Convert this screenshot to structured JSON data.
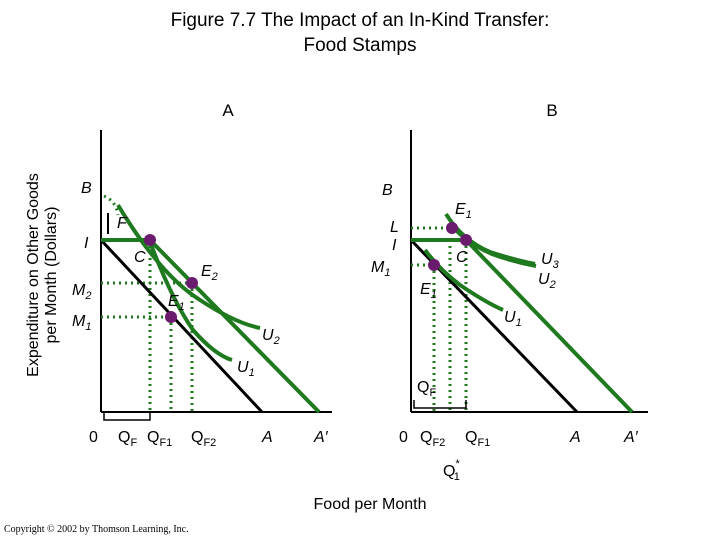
{
  "title": {
    "line1": "Figure 7.7 The Impact of an In-Kind Transfer:",
    "line2": "Food Stamps"
  },
  "y_axis_label": {
    "line1": "Expenditure on Other Goods",
    "line2": "per Month (Dollars)"
  },
  "x_axis_label": "Food per Month",
  "copyright": "Copyright © 2002 by Thomson Learning, Inc.",
  "colors": {
    "curve": "#1f7a1f",
    "point": "#6a1b6e",
    "axis": "#000000"
  },
  "panel_a": {
    "name": "A",
    "y_labels": {
      "b": "B",
      "i": "I",
      "m2": "M",
      "m2_sub": "2",
      "m1": "M",
      "m1_sub": "1"
    },
    "x_labels": {
      "origin": "0",
      "qf": "Q",
      "qf_sub": "F",
      "qf1": "Q",
      "qf1_sub": "F1",
      "qf2": "Q",
      "qf2_sub": "F2",
      "a": "A",
      "a_prime": "A′"
    },
    "points": {
      "c": "C",
      "e2": "E",
      "e2_sub": "2",
      "e1": "E",
      "e1_sub": "1",
      "f": "F"
    },
    "curves": {
      "u2": "U",
      "u2_sub": "2",
      "u1": "U",
      "u1_sub": "1"
    }
  },
  "panel_b": {
    "name": "B",
    "y_labels": {
      "b": "B",
      "l": "L",
      "i": "I",
      "m1": "M",
      "m1_sub": "1"
    },
    "x_labels": {
      "origin": "0",
      "qf2": "Q",
      "qf2_sub": "F2",
      "qf1": "Q",
      "qf1_sub": "F1",
      "a": "A",
      "a_prime": "A′",
      "q1star": "Q",
      "q1star_sup": "*",
      "q1star_sub": "1"
    },
    "points": {
      "e1_top": "E",
      "e1_top_sub": "1",
      "c": "C",
      "e1": "E",
      "e1_sub": "1"
    },
    "curves": {
      "u3": "U",
      "u3_sub": "3",
      "u2": "U",
      "u2_sub": "2",
      "u1": "U",
      "u1_sub": "1"
    },
    "qf_bracket": "Q",
    "qf_bracket_sub": "F"
  }
}
